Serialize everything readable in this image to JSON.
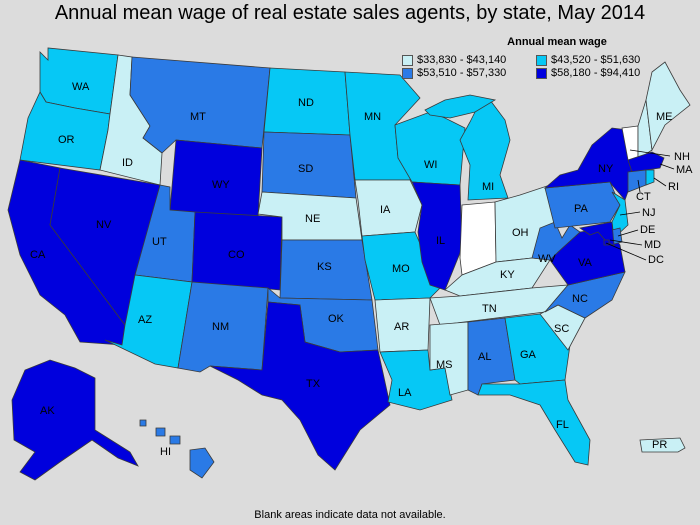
{
  "title": "Annual mean wage of real estate sales agents, by state, May 2014",
  "legend": {
    "title": "Annual mean wage",
    "items": [
      {
        "label": "$33,830 - $43,140",
        "color": "#c9f0f5"
      },
      {
        "label": "$43,520 - $51,630",
        "color": "#06c8f5"
      },
      {
        "label": "$53,510 - $57,330",
        "color": "#2a7ae6"
      },
      {
        "label": "$58,180 - $94,410",
        "color": "#0000dd"
      }
    ]
  },
  "colors": {
    "no_data": "#ffffff",
    "background": "#dcdcdc",
    "border": "#3a3a3a"
  },
  "states": {
    "WA": "#06c8f5",
    "OR": "#06c8f5",
    "CA": "#0000dd",
    "ID": "#c9f0f5",
    "NV": "#0000dd",
    "MT": "#2a7ae6",
    "WY": "#0000dd",
    "UT": "#2a7ae6",
    "CO": "#0000dd",
    "AZ": "#06c8f5",
    "NM": "#2a7ae6",
    "ND": "#06c8f5",
    "SD": "#2a7ae6",
    "NE": "#c9f0f5",
    "KS": "#2a7ae6",
    "OK": "#2a7ae6",
    "TX": "#0000dd",
    "MN": "#06c8f5",
    "IA": "#c9f0f5",
    "MO": "#06c8f5",
    "AR": "#c9f0f5",
    "LA": "#06c8f5",
    "WI": "#06c8f5",
    "IL": "#0000dd",
    "MI": "#06c8f5",
    "IN": "#ffffff",
    "OH": "#c9f0f5",
    "KY": "#c9f0f5",
    "TN": "#c9f0f5",
    "MS": "#c9f0f5",
    "AL": "#2a7ae6",
    "GA": "#06c8f5",
    "FL": "#06c8f5",
    "SC": "#c9f0f5",
    "NC": "#2a7ae6",
    "VA": "#0000dd",
    "WV": "#2a7ae6",
    "PA": "#2a7ae6",
    "NY": "#0000dd",
    "NJ": "#06c8f5",
    "DE": "#2a7ae6",
    "MD": "#0000dd",
    "DC": "#0000dd",
    "CT": "#2a7ae6",
    "RI": "#06c8f5",
    "MA": "#0000dd",
    "VT": "#ffffff",
    "NH": "#c9f0f5",
    "ME": "#c9f0f5",
    "AK": "#0000dd",
    "HI": "#2a7ae6",
    "PR": "#c9f0f5"
  },
  "footnote": "Blank areas indicate data not available."
}
